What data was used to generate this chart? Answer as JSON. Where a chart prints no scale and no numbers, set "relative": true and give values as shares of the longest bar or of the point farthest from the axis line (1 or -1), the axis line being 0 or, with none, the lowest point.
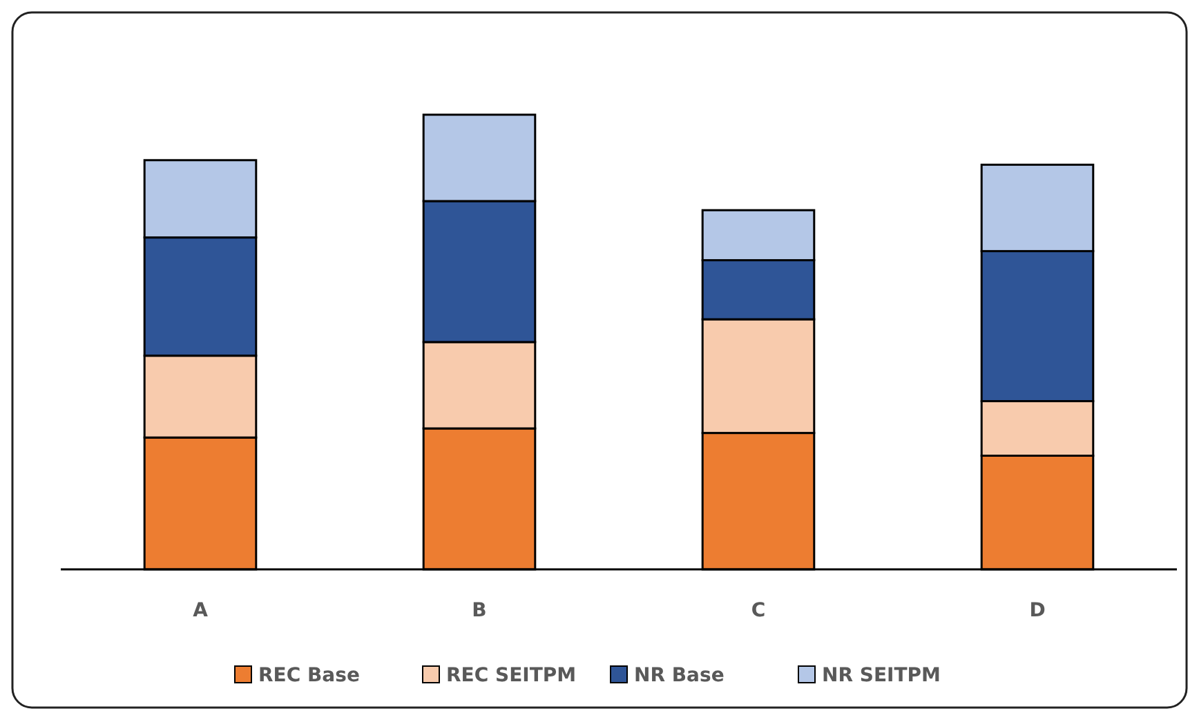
{
  "chart_data": {
    "type": "bar",
    "stacked": true,
    "relative": true,
    "legend": "bottom",
    "categories": [
      "A",
      "B",
      "C",
      "D"
    ],
    "series": [
      {
        "name": "REC Base",
        "color": "#ed7d31",
        "values": [
          0.29,
          0.31,
          0.3,
          0.25
        ]
      },
      {
        "name": "REC SEITPM",
        "color": "#f8cbad",
        "values": [
          0.18,
          0.19,
          0.25,
          0.12
        ]
      },
      {
        "name": "NR Base",
        "color": "#2f5597",
        "values": [
          0.26,
          0.31,
          0.13,
          0.33
        ]
      },
      {
        "name": "NR SEITPM",
        "color": "#b4c7e7",
        "values": [
          0.17,
          0.19,
          0.11,
          0.19
        ]
      }
    ]
  }
}
